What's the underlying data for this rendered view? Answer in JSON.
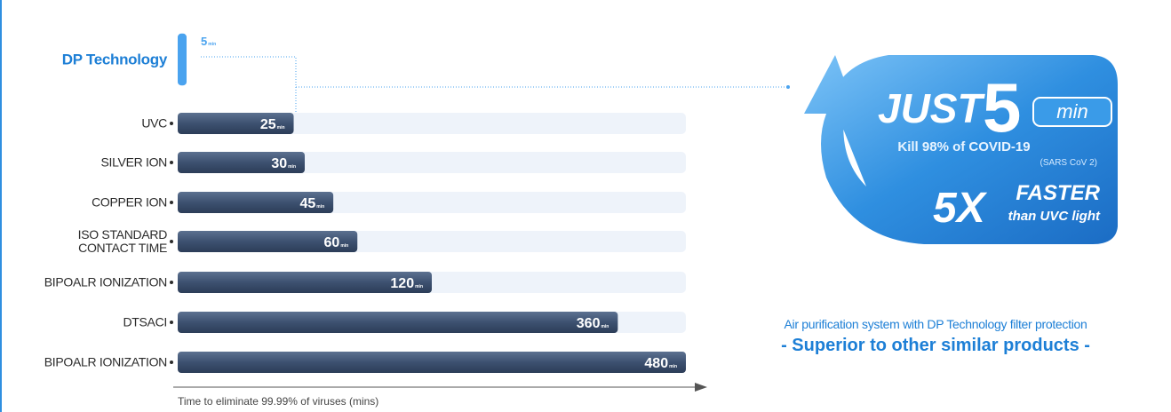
{
  "chart_data": {
    "type": "bar",
    "orientation": "horizontal",
    "categories": [
      "DP Technology",
      "UVC",
      "SILVER ION",
      "COPPER ION",
      "ISO STANDARD\nCONTACT TIME",
      "BIPOALR IONIZATION",
      "DTSACI",
      "BIPOALR IONIZATION"
    ],
    "values": [
      5,
      25,
      30,
      45,
      60,
      120,
      360,
      480
    ],
    "value_unit": "min",
    "color": "#3d5170",
    "highlight_color": "#4aa3ef",
    "highlight_index": 0,
    "xlabel": "Time to eliminate 99.99% of viruses (mins)"
  },
  "badge": {
    "lead": "JUST",
    "number": "5",
    "unit": "min",
    "line1": "Kill 98% of COVID-19",
    "line2": "(SARS CoV 2)",
    "factor": "5X",
    "faster": "FASTER",
    "than": "than UVC light"
  },
  "caption": {
    "line1": "Air purification system with DP Technology filter protection",
    "line2": "- Superior to other similar products -"
  }
}
